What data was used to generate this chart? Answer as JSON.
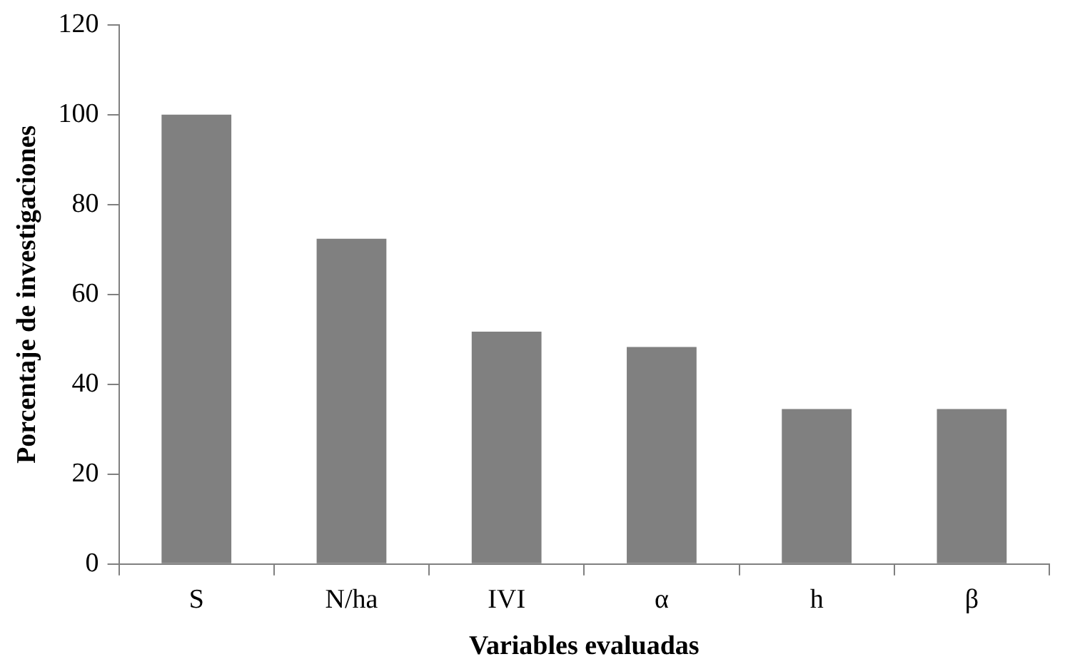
{
  "chart_data": {
    "type": "bar",
    "xlabel": "Variables evaluadas",
    "ylabel": "Porcentaje de investigaciones",
    "categories": [
      "S",
      "N/ha",
      "IVI",
      "α",
      "h",
      "β"
    ],
    "values": [
      100,
      72.4,
      51.7,
      48.3,
      34.5,
      34.5
    ],
    "color": "#808080",
    "ylim": [
      0,
      120
    ],
    "yticks": [
      0,
      20,
      40,
      60,
      80,
      100,
      120
    ],
    "grid": false,
    "legend": false
  }
}
